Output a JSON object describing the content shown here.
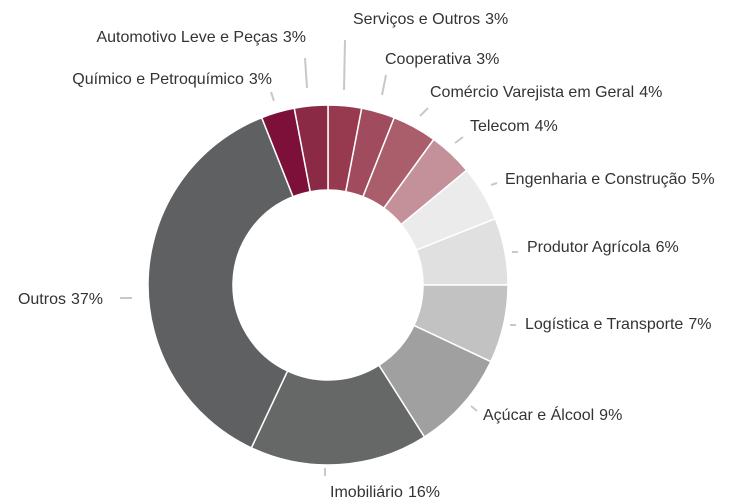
{
  "chart_data": {
    "type": "donut",
    "categories": [
      "Serviços e Outros",
      "Cooperativa",
      "Comércio Varejista em Geral",
      "Telecom",
      "Engenharia e Construção",
      "Produtor Agrícola",
      "Logística e Transporte",
      "Açúcar e Álcool",
      "Imobiliário",
      "Outros",
      "Químico e Petroquímico",
      "Automotivo Leve e Peças"
    ],
    "values": [
      3,
      3,
      4,
      4,
      5,
      6,
      7,
      9,
      16,
      37,
      3,
      3
    ],
    "value_labels": [
      "3%",
      "3%",
      "4%",
      "4%",
      "5%",
      "6%",
      "7%",
      "9%",
      "16%",
      "37%",
      "3%",
      "3%"
    ],
    "colors": [
      "#97394f",
      "#a04b5e",
      "#aa5e6c",
      "#c4909a",
      "#ebebeb",
      "#e0e0e0",
      "#c2c2c2",
      "#a0a0a0",
      "#666767",
      "#5f6061",
      "#7d1038",
      "#8b2a45"
    ]
  }
}
